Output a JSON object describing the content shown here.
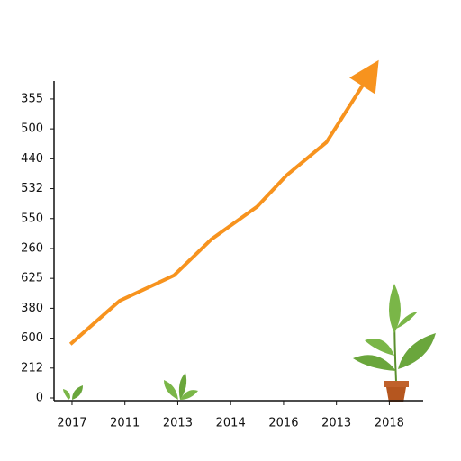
{
  "chart_data": {
    "type": "line",
    "categories": [
      "2017",
      "2011",
      "2013",
      "2014",
      "2016",
      "2013",
      "2018"
    ],
    "xlim": [
      -0.34,
      6.64
    ],
    "ylim": [
      -0.09,
      10.6
    ],
    "yticks": [
      0,
      {
        "value": 1,
        "label": "212"
      },
      {
        "value": 2,
        "label": "600"
      },
      {
        "value": 3,
        "label": "380"
      },
      {
        "value": 4,
        "label": "625"
      },
      {
        "value": 5,
        "label": "260"
      },
      {
        "value": 6,
        "label": "550"
      },
      {
        "value": 7,
        "label": "532"
      },
      {
        "value": 8,
        "label": "440"
      },
      {
        "value": 9,
        "label": "500"
      },
      {
        "value": 10,
        "label": "355"
      }
    ],
    "series": [
      {
        "color": "#f7931e",
        "x": [
          -0.03,
          0.9,
          1.93,
          2.63,
          3.5,
          4.06,
          4.81,
          5.8
        ],
        "values": [
          1.8,
          3.25,
          4.1,
          5.3,
          6.4,
          7.45,
          8.55,
          11.3
        ]
      }
    ]
  }
}
